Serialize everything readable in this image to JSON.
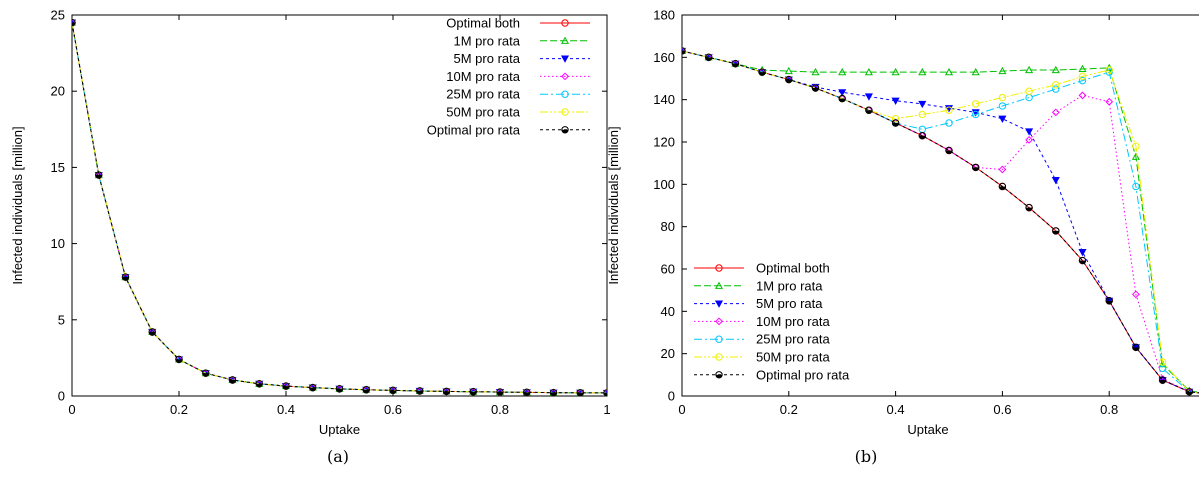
{
  "chart_data": [
    {
      "type": "line",
      "caption": "(a)",
      "xlabel": "Uptake",
      "ylabel": "Infected individuals [million]",
      "xlim": [
        0,
        1
      ],
      "ylim": [
        0,
        25
      ],
      "xticks": [
        "0",
        "0.2",
        "0.4",
        "0.6",
        "0.8",
        "1"
      ],
      "yticks": [
        "0",
        "5",
        "10",
        "15",
        "20",
        "25"
      ],
      "grid": false,
      "legend_position": "top-right",
      "x": [
        0,
        0.05,
        0.1,
        0.15,
        0.2,
        0.25,
        0.3,
        0.35,
        0.4,
        0.45,
        0.5,
        0.55,
        0.6,
        0.65,
        0.7,
        0.75,
        0.8,
        0.85,
        0.9,
        0.95,
        1.0
      ],
      "series": [
        {
          "name": "Optimal both",
          "color": "#ff0000",
          "marker": "circle",
          "dash": "solid",
          "values": [
            24.5,
            14.5,
            7.8,
            4.2,
            2.4,
            1.5,
            1.05,
            0.8,
            0.65,
            0.55,
            0.47,
            0.41,
            0.37,
            0.33,
            0.3,
            0.28,
            0.26,
            0.24,
            0.22,
            0.21,
            0.2
          ]
        },
        {
          "name": "1M pro rata",
          "color": "#00c000",
          "marker": "triangle-up",
          "dash": "long",
          "values": [
            24.5,
            14.5,
            7.8,
            4.2,
            2.4,
            1.5,
            1.05,
            0.8,
            0.65,
            0.55,
            0.47,
            0.41,
            0.37,
            0.33,
            0.3,
            0.28,
            0.26,
            0.24,
            0.22,
            0.21,
            0.2
          ]
        },
        {
          "name": "5M pro rata",
          "color": "#0000ff",
          "marker": "triangle-down",
          "dash": "short",
          "values": [
            24.5,
            14.5,
            7.8,
            4.2,
            2.4,
            1.5,
            1.05,
            0.8,
            0.65,
            0.55,
            0.47,
            0.41,
            0.37,
            0.33,
            0.3,
            0.28,
            0.26,
            0.24,
            0.22,
            0.21,
            0.2
          ]
        },
        {
          "name": "10M pro rata",
          "color": "#ff00ff",
          "marker": "diamond",
          "dash": "dot",
          "values": [
            24.5,
            14.5,
            7.8,
            4.2,
            2.4,
            1.5,
            1.05,
            0.8,
            0.65,
            0.55,
            0.47,
            0.41,
            0.37,
            0.33,
            0.3,
            0.28,
            0.26,
            0.24,
            0.22,
            0.21,
            0.2
          ]
        },
        {
          "name": "25M pro rata",
          "color": "#00c8ff",
          "marker": "circle",
          "dash": "dashdot",
          "values": [
            24.5,
            14.5,
            7.8,
            4.2,
            2.4,
            1.5,
            1.05,
            0.8,
            0.65,
            0.55,
            0.47,
            0.41,
            0.37,
            0.33,
            0.3,
            0.28,
            0.26,
            0.24,
            0.22,
            0.21,
            0.2
          ]
        },
        {
          "name": "50M pro rata",
          "color": "#f0f000",
          "marker": "circle",
          "dash": "dashdotdot",
          "values": [
            24.5,
            14.5,
            7.8,
            4.2,
            2.4,
            1.5,
            1.05,
            0.8,
            0.65,
            0.55,
            0.47,
            0.41,
            0.37,
            0.33,
            0.3,
            0.28,
            0.26,
            0.24,
            0.22,
            0.21,
            0.2
          ]
        },
        {
          "name": "Optimal pro rata",
          "color": "#000000",
          "marker": "circle-half",
          "dash": "short",
          "values": [
            24.5,
            14.5,
            7.8,
            4.2,
            2.4,
            1.5,
            1.05,
            0.8,
            0.65,
            0.55,
            0.47,
            0.41,
            0.37,
            0.33,
            0.3,
            0.28,
            0.26,
            0.24,
            0.22,
            0.21,
            0.2
          ]
        }
      ]
    },
    {
      "type": "line",
      "caption": "(b)",
      "xlabel": "Uptake",
      "ylabel": "Infected individuals [million]",
      "xlim": [
        0,
        1
      ],
      "ylim": [
        0,
        180
      ],
      "xticks": [
        "0",
        "0.2",
        "0.4",
        "0.6",
        "0.8"
      ],
      "yticks": [
        "0",
        "20",
        "40",
        "60",
        "80",
        "100",
        "120",
        "140",
        "160",
        "180"
      ],
      "grid": false,
      "legend_position": "bottom-left",
      "x": [
        0,
        0.05,
        0.1,
        0.15,
        0.2,
        0.25,
        0.3,
        0.35,
        0.4,
        0.45,
        0.5,
        0.55,
        0.6,
        0.65,
        0.7,
        0.75,
        0.8,
        0.85,
        0.9,
        0.95,
        1.0
      ],
      "series": [
        {
          "name": "Optimal both",
          "color": "#ff0000",
          "marker": "circle",
          "dash": "solid",
          "values": [
            163,
            160,
            157,
            153,
            149.5,
            145.5,
            140.5,
            135,
            129,
            123,
            116,
            108,
            99,
            89,
            78,
            64,
            45,
            23,
            7.5,
            2,
            0.5
          ]
        },
        {
          "name": "1M pro rata",
          "color": "#00c000",
          "marker": "triangle-up",
          "dash": "long",
          "values": [
            163,
            160,
            157,
            154,
            153.5,
            153,
            153,
            153,
            153,
            153,
            153,
            153,
            153.5,
            154,
            154,
            154.5,
            155,
            113,
            15,
            2.5,
            0.5
          ]
        },
        {
          "name": "5M pro rata",
          "color": "#0000ff",
          "marker": "triangle-down",
          "dash": "short",
          "values": [
            163,
            160,
            157,
            153,
            149.5,
            146,
            143.5,
            141.5,
            139.5,
            138,
            136,
            134,
            131,
            125,
            102,
            68,
            45,
            23,
            7.5,
            2,
            0.5
          ]
        },
        {
          "name": "10M pro rata",
          "color": "#ff00ff",
          "marker": "diamond",
          "dash": "dot",
          "values": [
            163,
            160,
            157,
            153,
            149.5,
            145.5,
            140.5,
            135,
            129,
            123,
            116,
            108,
            107,
            121,
            134,
            142,
            139,
            48,
            8,
            2,
            0.5
          ]
        },
        {
          "name": "25M pro rata",
          "color": "#00c8ff",
          "marker": "circle",
          "dash": "dashdot",
          "values": [
            163,
            160,
            157,
            153,
            149.5,
            145.5,
            140.5,
            135,
            129,
            126,
            129,
            133,
            137,
            141,
            145,
            149,
            153,
            99,
            13,
            2,
            0.5
          ]
        },
        {
          "name": "50M pro rata",
          "color": "#f0f000",
          "marker": "circle",
          "dash": "dashdotdot",
          "values": [
            163,
            160,
            157,
            153,
            149.5,
            145.5,
            140.5,
            135,
            131,
            133,
            135,
            138,
            141,
            144,
            147,
            151,
            154,
            118,
            16,
            2,
            0.5
          ]
        },
        {
          "name": "Optimal pro rata",
          "color": "#000000",
          "marker": "circle-half",
          "dash": "short",
          "values": [
            163,
            160,
            157,
            153,
            149.5,
            145.5,
            140.5,
            135,
            129,
            123,
            116,
            108,
            99,
            89,
            78,
            64,
            45,
            23,
            7.5,
            2,
            0.5
          ]
        }
      ]
    }
  ]
}
